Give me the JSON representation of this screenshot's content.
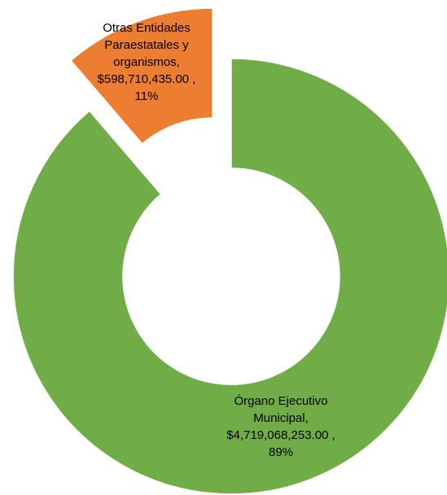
{
  "chart_data": {
    "type": "donut",
    "categories": [
      "Órgano Ejecutivo Municipal,",
      "Otras Entidades Paraestatales y organismos,"
    ],
    "values": [
      4719068253,
      598710435
    ],
    "value_labels": [
      "$4,719,068,253.00 ,",
      "$598,710,435.00 ,"
    ],
    "percent_labels": [
      "89%",
      "11%"
    ],
    "colors": [
      "#70ad47",
      "#ed7d31"
    ],
    "exploded": [
      false,
      true
    ]
  }
}
